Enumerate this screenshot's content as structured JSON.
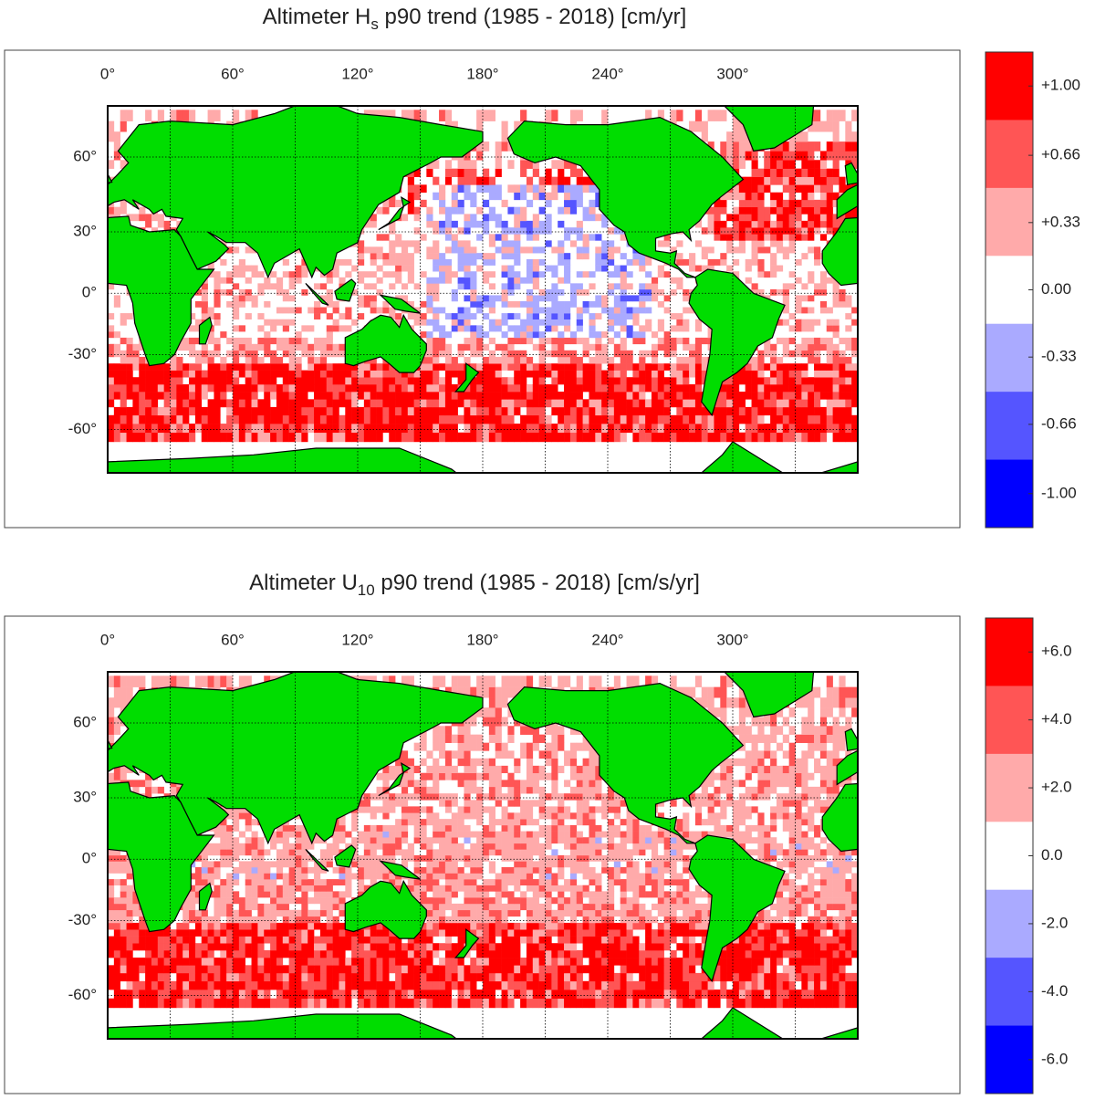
{
  "panels": [
    {
      "title": {
        "main": "Altimeter H",
        "sub": "s",
        "rest": " p90 trend (1985 - 2018) [cm/yr]"
      },
      "lonlim": [
        0,
        360
      ],
      "latlim": [
        -73,
        75
      ],
      "lonticks": [
        {
          "value": 0,
          "label": "0°"
        },
        {
          "value": 60,
          "label": "60°"
        },
        {
          "value": 120,
          "label": "120°"
        },
        {
          "value": 180,
          "label": "180°"
        },
        {
          "value": 240,
          "label": "240°"
        },
        {
          "value": 300,
          "label": "300°"
        }
      ],
      "latticks": [
        {
          "value": 60,
          "label": "60°"
        },
        {
          "value": 30,
          "label": "30°"
        },
        {
          "value": 0,
          "label": "0°"
        },
        {
          "value": -30,
          "label": "-30°"
        },
        {
          "value": -60,
          "label": "-60°"
        }
      ],
      "land_color": "#00dd00",
      "colorbar": {
        "colors": [
          "#ff0000",
          "#ff5555",
          "#ffaaaa",
          "#ffffff",
          "#aaaaff",
          "#5555ff",
          "#0000ff"
        ],
        "ticks": [
          {
            "value": 1.0,
            "label": "+1.00"
          },
          {
            "value": 0.66,
            "label": "+0.66"
          },
          {
            "value": 0.33,
            "label": "+0.33"
          },
          {
            "value": 0,
            "label": "0.00"
          },
          {
            "value": -0.33,
            "label": "-0.33"
          },
          {
            "value": -0.66,
            "label": "-0.66"
          },
          {
            "value": -1.0,
            "label": "-1.00"
          }
        ]
      }
    },
    {
      "title": {
        "main": "Altimeter U",
        "sub": "10",
        "rest": " p90 trend (1985 - 2018) [cm/s/yr]"
      },
      "lonlim": [
        0,
        360
      ],
      "latlim": [
        -73,
        75
      ],
      "lonticks": [
        {
          "value": 0,
          "label": "0°"
        },
        {
          "value": 60,
          "label": "60°"
        },
        {
          "value": 120,
          "label": "120°"
        },
        {
          "value": 180,
          "label": "180°"
        },
        {
          "value": 240,
          "label": "240°"
        },
        {
          "value": 300,
          "label": "300°"
        }
      ],
      "latticks": [
        {
          "value": 60,
          "label": "60°"
        },
        {
          "value": 30,
          "label": "30°"
        },
        {
          "value": 0,
          "label": "0°"
        },
        {
          "value": -30,
          "label": "-30°"
        },
        {
          "value": -60,
          "label": "-60°"
        }
      ],
      "land_color": "#00dd00",
      "colorbar": {
        "colors": [
          "#ff0000",
          "#ff5555",
          "#ffaaaa",
          "#ffffff",
          "#aaaaff",
          "#5555ff",
          "#0000ff"
        ],
        "ticks": [
          {
            "value": 6,
            "label": "+6.0"
          },
          {
            "value": 4,
            "label": "+4.0"
          },
          {
            "value": 2,
            "label": "+2.0"
          },
          {
            "value": 0,
            "label": "0.0"
          },
          {
            "value": -2,
            "label": "-2.0"
          },
          {
            "value": -4,
            "label": "-4.0"
          },
          {
            "value": -6,
            "label": "-6.0"
          }
        ]
      }
    }
  ]
}
